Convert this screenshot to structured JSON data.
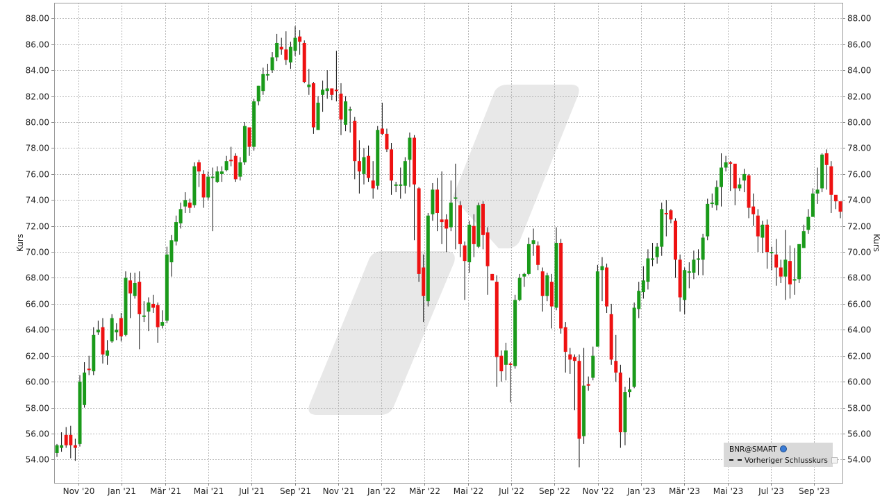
{
  "chart_data": {
    "type": "candlestick",
    "ylabel_left": "Kurs",
    "ylabel_right": "Kurs",
    "ylim": [
      52.2,
      89.2
    ],
    "y_ticks": [
      "54.00",
      "56.00",
      "58.00",
      "60.00",
      "62.00",
      "64.00",
      "66.00",
      "68.00",
      "70.00",
      "72.00",
      "74.00",
      "76.00",
      "78.00",
      "80.00",
      "82.00",
      "84.00",
      "86.00",
      "88.00"
    ],
    "x_ticks": [
      "Nov '20",
      "Jan '21",
      "Mär '21",
      "Mai '21",
      "Jul '21",
      "Sep '21",
      "Nov '21",
      "Jan '22",
      "Mär '22",
      "Mai '22",
      "Jul '22",
      "Sep '22",
      "Nov '22",
      "Jan '23",
      "Mär '23",
      "Mai '23",
      "Jul '23",
      "Sep '23"
    ],
    "grid": true,
    "up_color": "#1a9a1a",
    "down_color": "#ee1111",
    "candles": [
      [
        54.5,
        55.1,
        54.9,
        54.2,
        55.2
      ],
      [
        54.9,
        55.1,
        55.7,
        54.6,
        56.1
      ],
      [
        55.9,
        55.1,
        56.4,
        54.9,
        56.5
      ],
      [
        55.9,
        55.1,
        55.9,
        54.1,
        56.6
      ],
      [
        55.1,
        54.9,
        54.5,
        53.9,
        55.6
      ],
      [
        55.2,
        60.0,
        60.1,
        55.0,
        60.5
      ],
      [
        58.2,
        60.7,
        60.7,
        58.0,
        61.5
      ],
      [
        61.0,
        60.9,
        60.7,
        60.5,
        62.0
      ],
      [
        60.8,
        63.6,
        63.6,
        60.5,
        64.2
      ],
      [
        63.8,
        64.0,
        64.0,
        63.6,
        64.7
      ],
      [
        64.2,
        62.1,
        62.0,
        61.4,
        64.9
      ],
      [
        62.0,
        62.4,
        62.8,
        61.3,
        63.2
      ],
      [
        63.1,
        64.9,
        64.9,
        63.0,
        65.2
      ],
      [
        63.8,
        64.0,
        64.2,
        63.2,
        64.5
      ],
      [
        64.9,
        63.5,
        63.4,
        63.1,
        65.3
      ],
      [
        63.6,
        68.0,
        68.0,
        63.5,
        68.5
      ],
      [
        67.8,
        66.8,
        66.8,
        64.9,
        68.4
      ],
      [
        66.6,
        67.6,
        67.4,
        66.4,
        68.4
      ],
      [
        67.7,
        65.2,
        65.0,
        62.5,
        68.5
      ],
      [
        65.1,
        65.1,
        64.9,
        64.6,
        66.2
      ],
      [
        65.4,
        66.1,
        66.1,
        63.9,
        66.5
      ],
      [
        66.0,
        65.7,
        66.2,
        65.3,
        66.7
      ],
      [
        65.9,
        64.2,
        64.1,
        63.0,
        66.1
      ],
      [
        64.3,
        64.6,
        64.6,
        64.1,
        65.5
      ],
      [
        64.7,
        69.8,
        69.7,
        64.5,
        70.4
      ],
      [
        69.2,
        70.9,
        70.9,
        68.1,
        71.3
      ],
      [
        70.8,
        72.3,
        72.3,
        70.5,
        72.8
      ],
      [
        72.2,
        73.3,
        73.3,
        71.8,
        73.8
      ],
      [
        73.5,
        74.0,
        73.9,
        73.0,
        74.6
      ],
      [
        73.8,
        73.4,
        73.5,
        73.0,
        74.1
      ],
      [
        73.6,
        76.6,
        76.6,
        73.4,
        76.9
      ],
      [
        76.9,
        76.2,
        76.0,
        75.0,
        77.1
      ],
      [
        76.0,
        74.2,
        74.1,
        73.4,
        76.3
      ],
      [
        74.2,
        75.8,
        75.8,
        74.0,
        76.2
      ],
      [
        75.8,
        75.8,
        75.5,
        71.6,
        76.5
      ],
      [
        75.4,
        76.2,
        76.0,
        75.3,
        76.6
      ],
      [
        76.0,
        76.2,
        76.2,
        75.4,
        76.6
      ],
      [
        76.3,
        77.0,
        77.0,
        76.2,
        77.4
      ],
      [
        77.1,
        77.0,
        77.2,
        76.6,
        78.1
      ],
      [
        77.4,
        75.6,
        75.8,
        75.4,
        77.6
      ],
      [
        75.8,
        76.9,
        77.0,
        75.5,
        77.3
      ],
      [
        76.9,
        79.7,
        79.7,
        76.7,
        80.0
      ],
      [
        79.6,
        78.1,
        78.2,
        77.4,
        78.7
      ],
      [
        78.1,
        81.6,
        81.6,
        77.8,
        81.8
      ],
      [
        81.6,
        82.8,
        82.5,
        81.3,
        82.8
      ],
      [
        82.4,
        83.7,
        83.7,
        82.1,
        84.2
      ],
      [
        83.6,
        83.7,
        84.0,
        83.2,
        84.5
      ],
      [
        84.0,
        85.0,
        85.0,
        83.8,
        85.4
      ],
      [
        85.0,
        86.1,
        86.0,
        84.7,
        86.8
      ],
      [
        85.8,
        85.6,
        85.6,
        85.2,
        86.5
      ],
      [
        85.6,
        84.8,
        84.7,
        84.4,
        87.0
      ],
      [
        84.6,
        85.8,
        85.8,
        84.1,
        86.2
      ],
      [
        85.5,
        86.5,
        86.4,
        85.1,
        87.4
      ],
      [
        86.6,
        86.2,
        86.2,
        85.2,
        87.1
      ],
      [
        86.1,
        83.1,
        83.1,
        83.0,
        86.3
      ],
      [
        82.7,
        82.9,
        82.5,
        82.1,
        84.1
      ],
      [
        83.0,
        79.6,
        79.3,
        79.1,
        83.1
      ],
      [
        79.4,
        81.5,
        81.5,
        79.5,
        82.0
      ],
      [
        82.1,
        82.5,
        82.6,
        80.8,
        83.2
      ],
      [
        82.4,
        82.6,
        82.8,
        81.8,
        84.0
      ],
      [
        82.6,
        82.1,
        82.2,
        81.7,
        82.6
      ],
      [
        82.5,
        82.4,
        82.5,
        81.6,
        85.5
      ],
      [
        82.2,
        80.2,
        80.1,
        79.0,
        83.0
      ],
      [
        79.8,
        81.6,
        81.7,
        79.3,
        82.0
      ],
      [
        81.0,
        81.0,
        80.5,
        79.2,
        81.2
      ],
      [
        80.1,
        77.0,
        77.0,
        75.6,
        80.4
      ],
      [
        77.0,
        76.2,
        76.0,
        74.5,
        78.6
      ],
      [
        76.0,
        77.3,
        77.3,
        75.2,
        78.0
      ],
      [
        77.4,
        75.7,
        75.5,
        75.4,
        78.2
      ],
      [
        75.5,
        74.9,
        75.0,
        74.1,
        77.0
      ],
      [
        75.1,
        79.4,
        79.4,
        74.8,
        79.7
      ],
      [
        79.5,
        79.1,
        79.3,
        79.0,
        81.5
      ],
      [
        79.1,
        77.9,
        77.8,
        77.7,
        79.5
      ],
      [
        77.9,
        75.5,
        75.3,
        74.4,
        78.4
      ],
      [
        75.1,
        75.2,
        75.2,
        74.6,
        75.4
      ],
      [
        75.1,
        75.2,
        74.9,
        74.1,
        76.5
      ],
      [
        75.1,
        77.0,
        76.9,
        74.5,
        77.3
      ],
      [
        77.1,
        78.8,
        78.8,
        75.0,
        79.2
      ],
      [
        78.8,
        75.2,
        75.0,
        70.9,
        79.0
      ],
      [
        74.9,
        68.3,
        68.2,
        67.7,
        75.0
      ],
      [
        68.8,
        66.6,
        66.6,
        64.6,
        69.8
      ],
      [
        66.2,
        72.8,
        72.8,
        65.8,
        73.0
      ],
      [
        72.9,
        74.8,
        74.7,
        72.4,
        75.3
      ],
      [
        74.8,
        73.0,
        72.7,
        71.6,
        75.7
      ],
      [
        72.5,
        72.3,
        72.4,
        70.6,
        76.2
      ],
      [
        72.5,
        71.8,
        71.8,
        70.0,
        72.9
      ],
      [
        71.9,
        73.8,
        73.9,
        71.6,
        75.5
      ],
      [
        74.2,
        74.2,
        74.2,
        70.2,
        76.8
      ],
      [
        73.6,
        70.6,
        70.4,
        69.6,
        73.9
      ],
      [
        70.5,
        69.3,
        69.2,
        66.3,
        70.8
      ],
      [
        69.2,
        72.1,
        72.1,
        68.4,
        72.4
      ],
      [
        72.0,
        70.6,
        70.6,
        69.6,
        72.9
      ],
      [
        70.4,
        73.6,
        73.6,
        70.3,
        73.8
      ],
      [
        73.7,
        71.3,
        71.3,
        70.2,
        73.9
      ],
      [
        71.5,
        68.9,
        68.9,
        66.7,
        71.9
      ],
      [
        68.3,
        67.8,
        67.8,
        67.8,
        68.3
      ],
      [
        67.7,
        61.9,
        61.8,
        59.6,
        68.2
      ],
      [
        62.0,
        60.8,
        61.0,
        60.0,
        62.4
      ],
      [
        61.3,
        62.4,
        62.6,
        60.1,
        63.0
      ],
      [
        61.4,
        61.3,
        61.2,
        58.4,
        61.5
      ],
      [
        61.2,
        66.3,
        66.3,
        61.0,
        66.7
      ],
      [
        66.3,
        68.0,
        68.1,
        66.2,
        68.3
      ],
      [
        68.1,
        68.3,
        68.3,
        67.3,
        68.4
      ],
      [
        68.3,
        70.6,
        70.5,
        68.2,
        71.1
      ],
      [
        70.6,
        70.9,
        71.0,
        69.7,
        71.8
      ],
      [
        70.5,
        69.0,
        68.8,
        68.6,
        70.8
      ],
      [
        68.5,
        66.6,
        66.6,
        65.4,
        68.8
      ],
      [
        66.6,
        68.2,
        68.1,
        66.2,
        68.4
      ],
      [
        67.7,
        65.8,
        65.8,
        64.1,
        68.3
      ],
      [
        65.7,
        70.7,
        70.6,
        65.5,
        71.9
      ],
      [
        70.7,
        64.1,
        64.0,
        63.7,
        71.0
      ],
      [
        64.2,
        62.3,
        62.2,
        60.7,
        64.6
      ],
      [
        62.1,
        61.7,
        61.9,
        60.6,
        62.6
      ],
      [
        61.9,
        61.6,
        61.6,
        57.8,
        62.1
      ],
      [
        61.6,
        55.6,
        55.5,
        53.4,
        62.1
      ],
      [
        55.8,
        59.7,
        59.7,
        55.2,
        62.6
      ],
      [
        59.8,
        59.7,
        60.0,
        59.3,
        60.4
      ],
      [
        60.3,
        62.0,
        62.0,
        60.1,
        62.7
      ],
      [
        62.7,
        68.5,
        68.5,
        62.7,
        69.0
      ],
      [
        68.6,
        68.9,
        68.9,
        66.2,
        69.6
      ],
      [
        68.8,
        65.8,
        65.8,
        65.3,
        69.1
      ],
      [
        65.2,
        61.7,
        61.6,
        61.3,
        66.0
      ],
      [
        61.6,
        60.7,
        60.5,
        60.0,
        63.6
      ],
      [
        60.7,
        56.1,
        55.9,
        54.9,
        61.3
      ],
      [
        56.1,
        59.2,
        59.2,
        55.1,
        59.6
      ],
      [
        59.2,
        59.4,
        59.4,
        58.8,
        60.3
      ],
      [
        59.6,
        65.7,
        65.6,
        59.5,
        66.1
      ],
      [
        65.6,
        67.0,
        67.0,
        64.9,
        67.7
      ],
      [
        66.9,
        67.8,
        67.8,
        66.4,
        68.9
      ],
      [
        67.7,
        69.5,
        69.4,
        67.1,
        70.2
      ],
      [
        69.4,
        69.5,
        69.5,
        68.9,
        70.7
      ],
      [
        69.6,
        70.4,
        70.4,
        69.1,
        70.7
      ],
      [
        70.4,
        73.3,
        73.2,
        69.7,
        73.8
      ],
      [
        73.0,
        72.9,
        73.1,
        71.2,
        74.0
      ],
      [
        73.2,
        72.5,
        72.6,
        72.2,
        73.3
      ],
      [
        72.4,
        69.4,
        69.3,
        68.0,
        72.6
      ],
      [
        69.4,
        66.5,
        66.3,
        65.4,
        69.8
      ],
      [
        66.3,
        68.6,
        68.5,
        65.2,
        68.8
      ],
      [
        68.5,
        68.5,
        68.4,
        67.2,
        69.2
      ],
      [
        68.4,
        69.4,
        69.3,
        67.9,
        70.1
      ],
      [
        69.4,
        69.5,
        69.4,
        68.2,
        70.2
      ],
      [
        69.4,
        71.1,
        71.0,
        68.2,
        71.4
      ],
      [
        71.2,
        73.7,
        73.7,
        70.9,
        74.1
      ],
      [
        73.8,
        73.8,
        73.6,
        73.4,
        74.5
      ],
      [
        73.6,
        75.0,
        74.9,
        73.2,
        75.5
      ],
      [
        75.0,
        76.5,
        76.4,
        73.5,
        77.6
      ],
      [
        76.5,
        76.9,
        77.0,
        76.2,
        77.4
      ],
      [
        76.9,
        76.8,
        76.8,
        74.7,
        77.0
      ],
      [
        76.8,
        74.9,
        74.9,
        73.6,
        75.0
      ],
      [
        74.9,
        75.2,
        75.4,
        74.7,
        75.7
      ],
      [
        75.5,
        76.0,
        75.9,
        74.6,
        76.4
      ],
      [
        75.9,
        73.4,
        73.4,
        72.6,
        76.0
      ],
      [
        73.5,
        72.9,
        73.0,
        72.0,
        74.5
      ],
      [
        72.8,
        71.2,
        71.1,
        70.0,
        73.3
      ],
      [
        71.1,
        72.1,
        72.1,
        69.9,
        72.4
      ],
      [
        72.1,
        70.0,
        70.0,
        68.7,
        72.5
      ],
      [
        70.0,
        70.0,
        69.8,
        68.6,
        70.4
      ],
      [
        69.8,
        68.8,
        68.7,
        67.4,
        71.0
      ],
      [
        68.8,
        68.1,
        68.0,
        67.6,
        69.4
      ],
      [
        68.1,
        69.4,
        69.3,
        66.3,
        71.7
      ],
      [
        69.3,
        67.5,
        67.5,
        66.4,
        70.5
      ],
      [
        67.8,
        67.9,
        67.9,
        66.7,
        70.3
      ],
      [
        67.9,
        70.6,
        70.4,
        67.6,
        70.6
      ],
      [
        70.3,
        71.6,
        71.6,
        71.1,
        72.1
      ],
      [
        71.7,
        72.7,
        72.7,
        71.4,
        73.3
      ],
      [
        72.7,
        74.5,
        74.5,
        72.7,
        74.9
      ],
      [
        74.5,
        74.8,
        74.9,
        73.7,
        76.5
      ],
      [
        74.9,
        77.5,
        77.5,
        74.6,
        77.6
      ],
      [
        77.6,
        76.7,
        76.6,
        74.8,
        77.9
      ],
      [
        76.6,
        74.4,
        74.3,
        73.0,
        77.0
      ],
      [
        74.4,
        73.9,
        73.8,
        73.3,
        74.0
      ],
      [
        73.9,
        73.1,
        72.9,
        72.6,
        73.5
      ]
    ]
  },
  "legend": {
    "symbol": "BNR@SMART",
    "line_label": "Vorheriger Schlusskurs"
  }
}
